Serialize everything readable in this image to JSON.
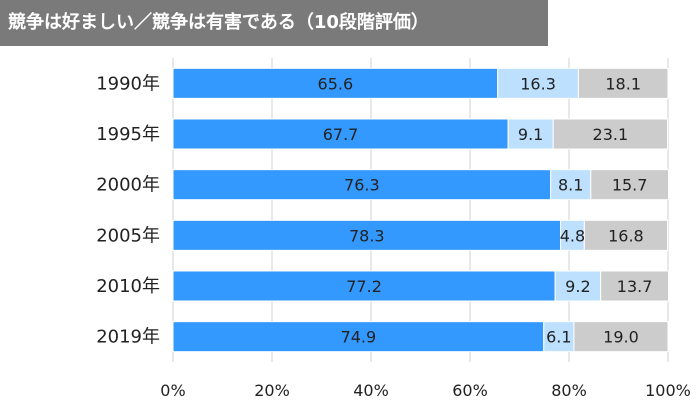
{
  "chart_data": {
    "type": "bar",
    "orientation": "horizontal",
    "stacked": true,
    "title": "競争は好ましい／競争は有害である（10段階評価）",
    "categories": [
      "1990年",
      "1995年",
      "2000年",
      "2005年",
      "2010年",
      "2019年"
    ],
    "series": [
      {
        "values": [
          65.6,
          67.7,
          76.3,
          78.3,
          77.2,
          74.9
        ],
        "color": "#3399ff"
      },
      {
        "values": [
          16.3,
          9.1,
          8.1,
          4.8,
          9.2,
          6.1
        ],
        "color": "#bde0ff"
      },
      {
        "values": [
          18.1,
          23.1,
          15.7,
          16.8,
          13.7,
          19.0
        ],
        "color": "#cccccc"
      }
    ],
    "value_labels": [
      [
        "65.6",
        "67.7",
        "76.3",
        "78.3",
        "77.2",
        "74.9"
      ],
      [
        "16.3",
        "9.1",
        "8.1",
        "4.8",
        "9.2",
        "6.1"
      ],
      [
        "18.1",
        "23.1",
        "15.7",
        "16.8",
        "13.7",
        "19.0"
      ]
    ],
    "xlim": [
      0,
      100
    ],
    "x_ticks": [
      0,
      20,
      40,
      60,
      80,
      100
    ],
    "x_tick_labels": [
      "0%",
      "20%",
      "40%",
      "60%",
      "80%",
      "100%"
    ],
    "grid": true,
    "legend": false
  }
}
